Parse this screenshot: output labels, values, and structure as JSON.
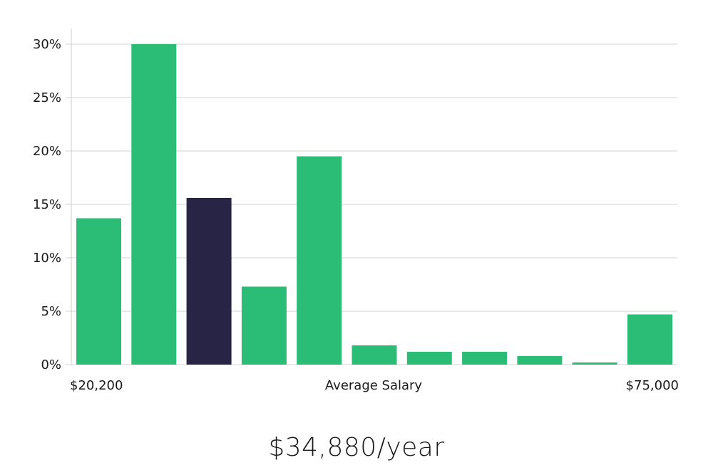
{
  "colors": {
    "bar": "#2bbd76",
    "highlight": "#272445",
    "grid": "#e2e2e2",
    "axis": "#cccccc"
  },
  "chart_data": {
    "type": "bar",
    "categories": [
      "1",
      "2",
      "3",
      "4",
      "5",
      "6",
      "7",
      "8",
      "9",
      "10",
      "11"
    ],
    "values": [
      13.7,
      30.0,
      15.6,
      7.3,
      19.5,
      1.8,
      1.2,
      1.2,
      0.8,
      0.2,
      4.7
    ],
    "highlight_index": 2,
    "ylim": [
      0,
      30
    ],
    "yticks": [
      0,
      5,
      10,
      15,
      20,
      25,
      30
    ],
    "ytick_labels": [
      "0%",
      "5%",
      "10%",
      "15%",
      "20%",
      "25%",
      "30%"
    ],
    "x_min_label": "$20,200",
    "x_max_label": "$75,000",
    "xlabel": "Average Salary",
    "grid": true
  },
  "headline": "$34,880/year"
}
